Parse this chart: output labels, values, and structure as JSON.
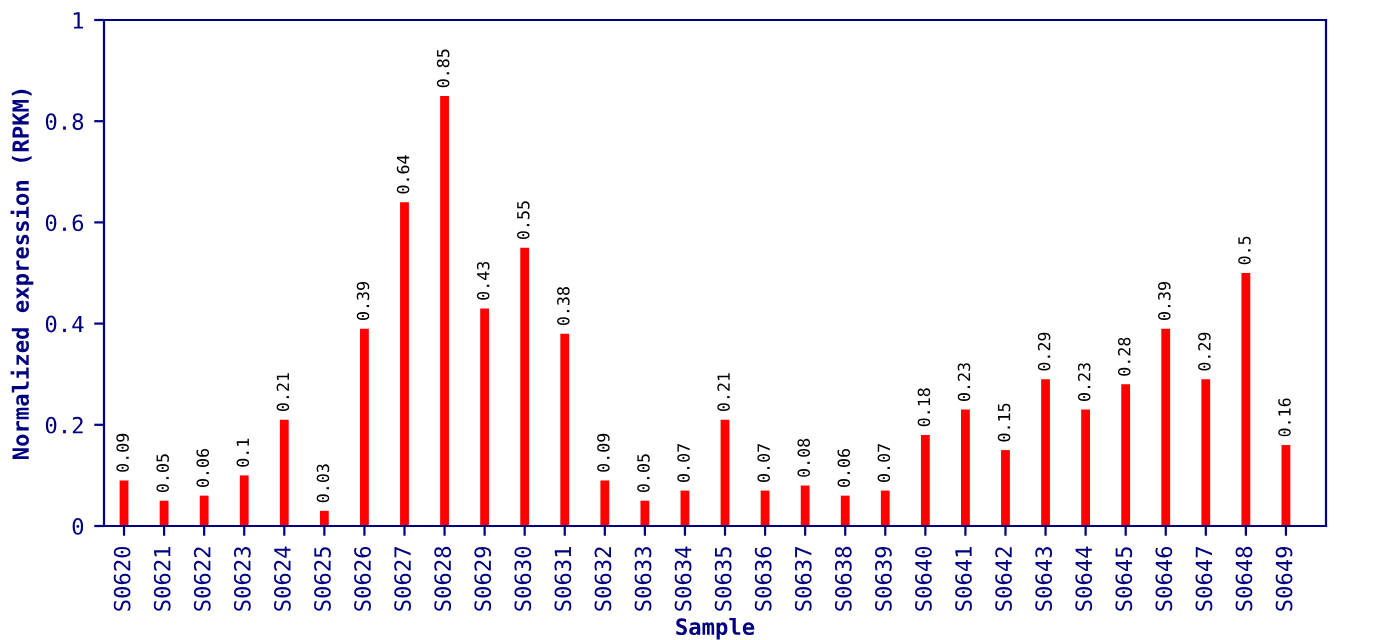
{
  "chart_data": {
    "type": "bar",
    "xlabel": "Sample",
    "ylabel": "Normalized expression (RPKM)",
    "categories": [
      "S0620",
      "S0621",
      "S0622",
      "S0623",
      "S0624",
      "S0625",
      "S0626",
      "S0627",
      "S0628",
      "S0629",
      "S0630",
      "S0631",
      "S0632",
      "S0633",
      "S0634",
      "S0635",
      "S0636",
      "S0637",
      "S0638",
      "S0639",
      "S0640",
      "S0641",
      "S0642",
      "S0643",
      "S0644",
      "S0645",
      "S0646",
      "S0647",
      "S0648",
      "S0649"
    ],
    "values": [
      0.09,
      0.05,
      0.06,
      0.1,
      0.21,
      0.03,
      0.39,
      0.64,
      0.85,
      0.43,
      0.55,
      0.38,
      0.09,
      0.05,
      0.07,
      0.21,
      0.07,
      0.08,
      0.06,
      0.07,
      0.18,
      0.23,
      0.15,
      0.29,
      0.23,
      0.28,
      0.39,
      0.29,
      0.5,
      0.16
    ],
    "color": "#ff0000",
    "ylim": [
      0,
      1
    ],
    "yticks": [
      0,
      0.2,
      0.4,
      0.6,
      0.8,
      1
    ],
    "grid": false,
    "data_labels": true
  }
}
